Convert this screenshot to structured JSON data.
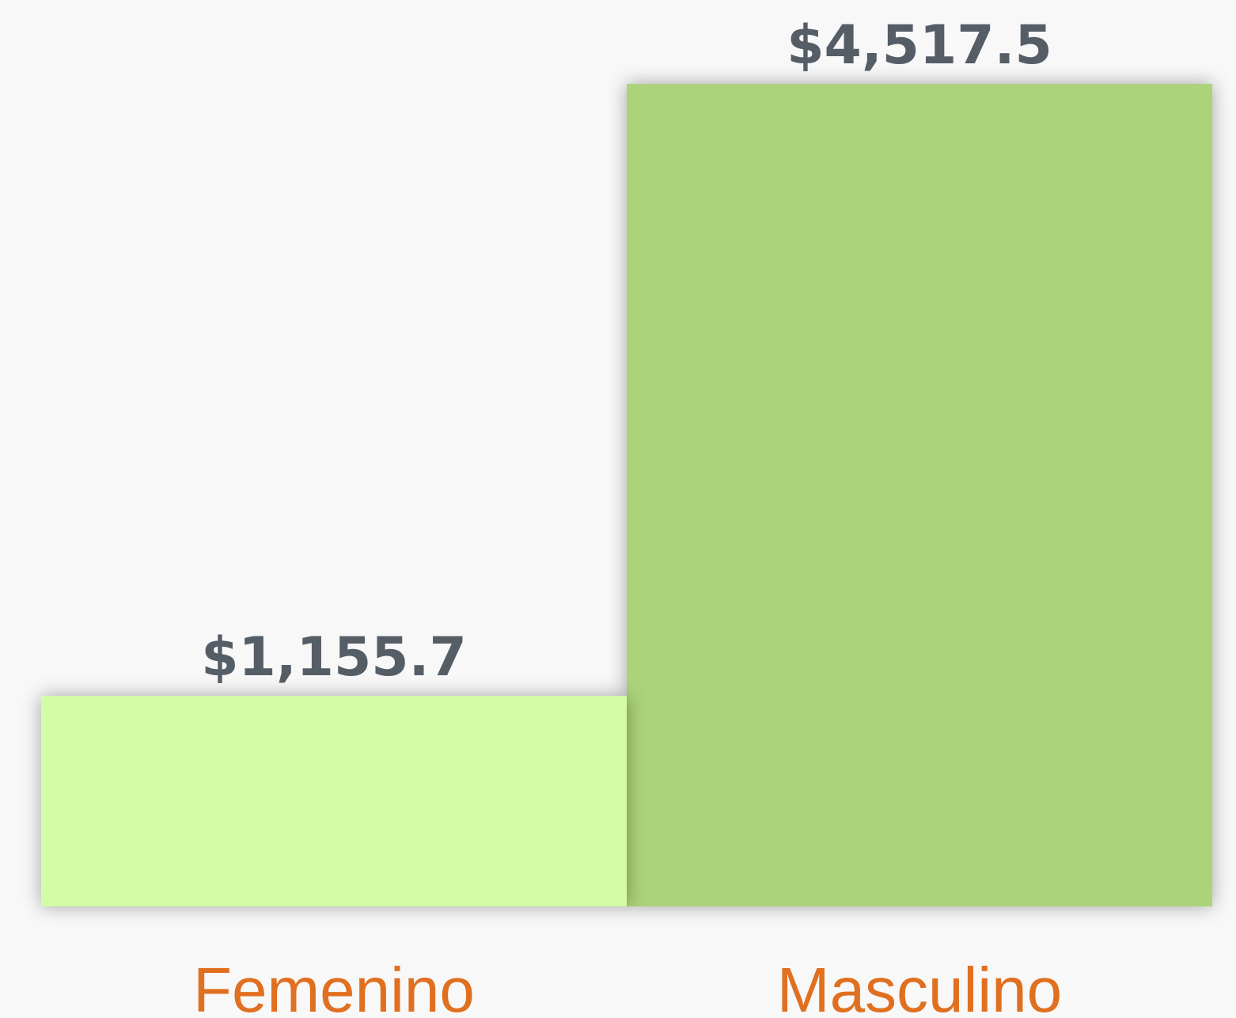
{
  "chart_data": {
    "type": "bar",
    "categories": [
      "Femenino",
      "Masculino"
    ],
    "values": [
      1155.7,
      4517.5
    ],
    "value_labels": [
      "$1,155.7",
      "$4,517.5"
    ],
    "colors": [
      "#d4fca6",
      "#abd37a"
    ]
  }
}
